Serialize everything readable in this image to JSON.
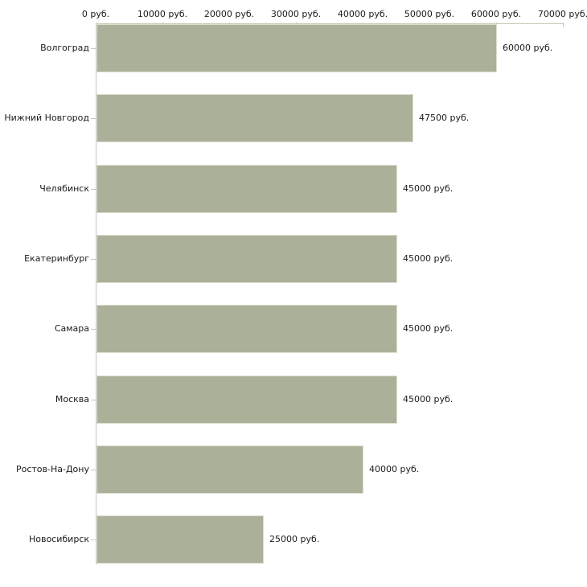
{
  "chart_data": {
    "type": "bar",
    "orientation": "horizontal",
    "categories": [
      "Волгоград",
      "Нижний Новгород",
      "Челябинск",
      "Екатеринбург",
      "Самара",
      "Москва",
      "Ростов-На-Дону",
      "Новосибирск"
    ],
    "values": [
      60000,
      47500,
      45000,
      45000,
      45000,
      45000,
      40000,
      25000
    ],
    "value_labels": [
      "60000 руб.",
      "47500 руб.",
      "45000 руб.",
      "45000 руб.",
      "45000 руб.",
      "45000 руб.",
      "40000 руб.",
      "25000 руб."
    ],
    "x_tick_values": [
      0,
      10000,
      20000,
      30000,
      40000,
      50000,
      60000,
      70000
    ],
    "x_tick_labels": [
      "0 руб.",
      "10000 руб.",
      "20000 руб.",
      "30000 руб.",
      "40000 руб.",
      "50000 руб.",
      "60000 руб.",
      "70000 руб."
    ],
    "xlim": [
      0,
      70000
    ],
    "unit": "руб.",
    "grid": false,
    "legend": "none",
    "value_labels_visible": true,
    "colors": {
      "background": "#ffffff",
      "bar_fill": "#abb199",
      "bar_border": "#dcdfd0",
      "axis_tick": "#c6c9b3",
      "y_axis_line": "#c6c6c6",
      "label_text": "#1a1a1a"
    }
  }
}
